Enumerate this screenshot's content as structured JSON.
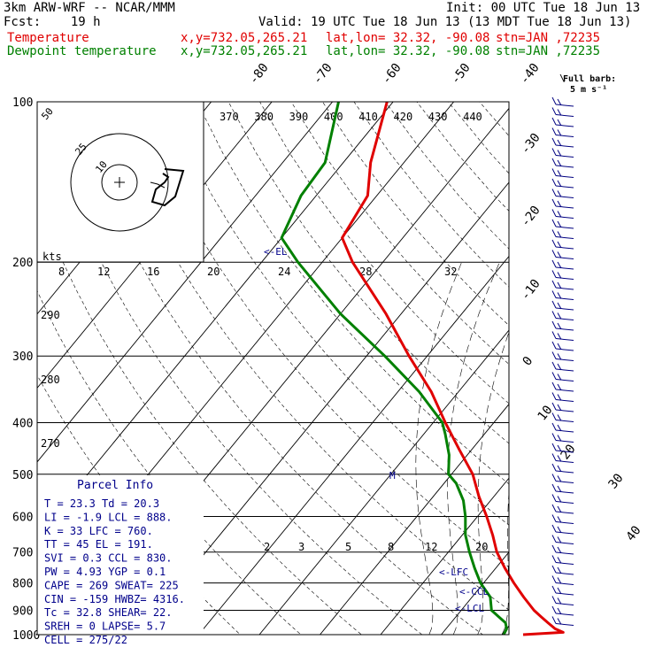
{
  "header": {
    "title": "3km ARW-WRF -- NCAR/MMM",
    "init": "Init: 00 UTC Tue 18 Jun 13",
    "fcst": "Fcst:    19 h",
    "valid": "Valid: 19 UTC Tue 18 Jun 13 (13 MDT Tue 18 Jun 13)",
    "temp_label": "Temperature",
    "dew_label": "Dewpoint temperature",
    "xy": "x,y=732.05,265.21",
    "latlon": "lat,lon= 32.32, -90.08",
    "stn": "stn=JAN ,72235"
  },
  "barb_legend": {
    "line1": "Full barb:",
    "line2": "5 m s⁻¹"
  },
  "parcel_info": {
    "title": "Parcel Info",
    "rows": [
      "T  =    23.3  Td =  20.3",
      "LI =    -1.9  LCL =  888.",
      "K  =      33  LFC = 760.",
      "TT =      45  EL  =  191.",
      "SVI =    0.3  CCL =  830.",
      "PW =    4.93  YGP =   0.1",
      "CAPE =   269  SWEAT=  225",
      "CIN =   -159  HWBZ= 4316.",
      "Tc =    32.8  SHEAR=  22.",
      "SREH =     0  LAPSE=  5.7",
      "CELL = 275/22"
    ]
  },
  "hodograph": {
    "units": "kts",
    "ring_labels": [
      "10",
      "25",
      "50"
    ]
  },
  "markers": {
    "el": "<-EL",
    "lfc": "<-LFC",
    "ccl": "<-CCL",
    "lcl": "<-LCL",
    "m": "M"
  },
  "chart_data": {
    "type": "line",
    "title": "3km ARW-WRF -- NCAR/MMM",
    "y_axis": {
      "label": "",
      "scale": "log",
      "range": [
        1000,
        100
      ],
      "ticks": [
        100,
        200,
        300,
        400,
        500,
        600,
        700,
        800,
        900,
        1000
      ]
    },
    "temperature_ticks": [
      -80,
      -70,
      -60,
      -50,
      -40,
      -30,
      -20,
      -10,
      0,
      10,
      20,
      30,
      40
    ],
    "theta_labels": [
      370,
      380,
      390,
      400,
      410,
      420,
      430,
      440
    ],
    "secondary_labels": [
      290,
      280,
      270
    ],
    "mixing_ratio_labels": [
      8,
      12,
      16,
      20,
      24,
      28,
      32
    ],
    "mixing_ratio_low_labels": [
      2,
      3,
      5,
      8,
      12,
      20
    ],
    "series": [
      {
        "name": "Temperature",
        "color": "#e00000",
        "points": [
          [
            1000,
            23.5
          ],
          [
            990,
            29.8
          ],
          [
            975,
            28.0
          ],
          [
            950,
            26.0
          ],
          [
            925,
            24.0
          ],
          [
            900,
            22.0
          ],
          [
            850,
            18.5
          ],
          [
            800,
            15.0
          ],
          [
            750,
            11.5
          ],
          [
            700,
            8.0
          ],
          [
            650,
            5.0
          ],
          [
            600,
            1.5
          ],
          [
            550,
            -2.5
          ],
          [
            500,
            -6.5
          ],
          [
            450,
            -12.0
          ],
          [
            400,
            -18.0
          ],
          [
            350,
            -24.5
          ],
          [
            300,
            -33.0
          ],
          [
            250,
            -42.5
          ],
          [
            200,
            -55.0
          ],
          [
            180,
            -60.0
          ],
          [
            150,
            -61.5
          ],
          [
            130,
            -65.5
          ],
          [
            100,
            -71.0
          ]
        ]
      },
      {
        "name": "Dewpoint temperature",
        "color": "#008000",
        "points": [
          [
            1000,
            20.3
          ],
          [
            975,
            20.0
          ],
          [
            950,
            19.0
          ],
          [
            925,
            17.0
          ],
          [
            900,
            15.0
          ],
          [
            850,
            13.0
          ],
          [
            800,
            9.5
          ],
          [
            750,
            6.5
          ],
          [
            700,
            3.5
          ],
          [
            650,
            0.5
          ],
          [
            600,
            -2.0
          ],
          [
            560,
            -4.5
          ],
          [
            520,
            -8.0
          ],
          [
            500,
            -10.5
          ],
          [
            460,
            -13.0
          ],
          [
            420,
            -16.5
          ],
          [
            400,
            -18.5
          ],
          [
            350,
            -26.5
          ],
          [
            300,
            -37.0
          ],
          [
            250,
            -50.0
          ],
          [
            200,
            -64.0
          ],
          [
            180,
            -70.0
          ],
          [
            150,
            -72.5
          ],
          [
            130,
            -73.0
          ],
          [
            100,
            -79.0
          ]
        ]
      }
    ]
  }
}
